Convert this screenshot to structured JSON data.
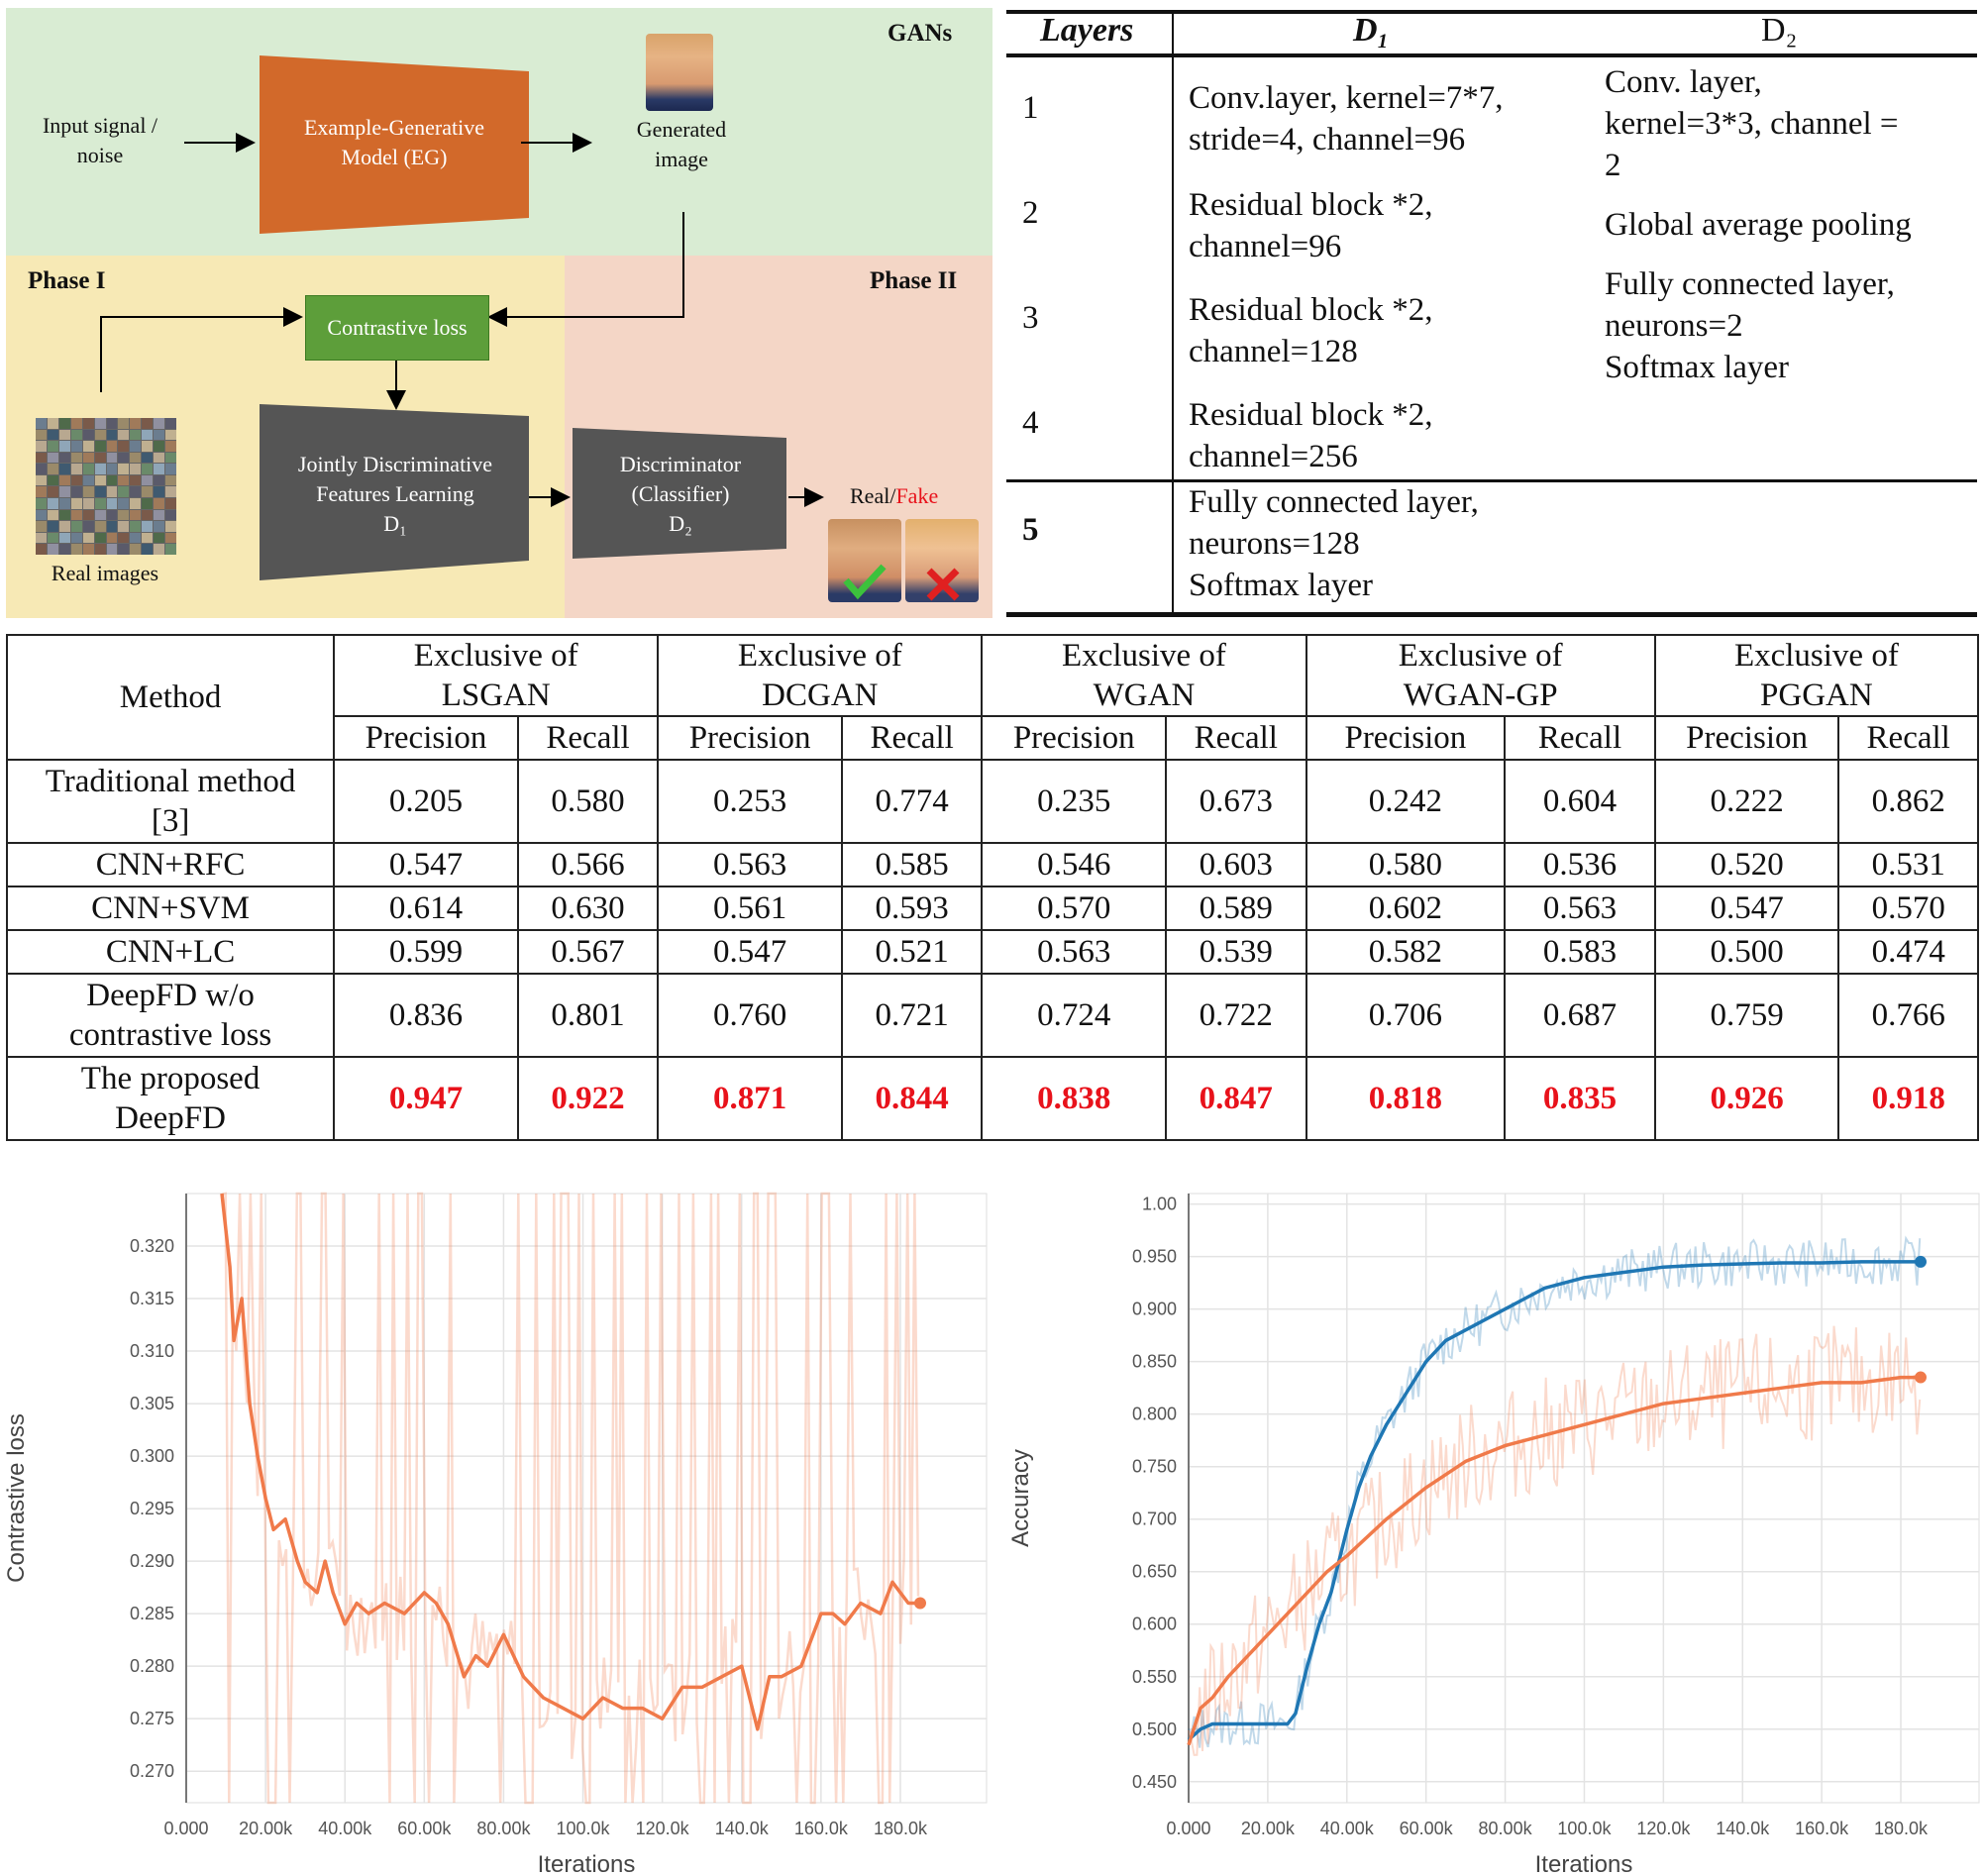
{
  "diagram": {
    "gans_label": "GANs",
    "phase1_label": "Phase I",
    "phase2_label": "Phase II",
    "input_label": "Input signal / noise",
    "eg_label": "Example-Generative Model (EG)",
    "generated_label": "Generated image",
    "contrastive_label": "Contrastive loss",
    "jdfl_line1": "Jointly Discriminative",
    "jdfl_line2": "Features Learning",
    "jdfl_line3": "D₁",
    "disc_line1": "Discriminator",
    "disc_line2": "(Classifier)",
    "disc_line3": "D₂",
    "real_images_label": "Real images",
    "real_label": "Real/",
    "fake_label": "Fake",
    "colors": {
      "eg_box": "#d2692a",
      "dark_box": "#555555",
      "loss_box": "#5d9e3a",
      "fake": "#e8121b",
      "check": "#3cc23c",
      "cross": "#e02020"
    }
  },
  "architecture": {
    "headers": {
      "layers": "Layers",
      "d1": "D₁",
      "d2": "D₂"
    },
    "rows": [
      {
        "layer": "1",
        "d1": [
          "Conv.layer, kernel=7*7,",
          "stride=4, channel=96"
        ],
        "d2": [
          "Conv. layer,",
          "kernel=3*3, channel =",
          "2"
        ]
      },
      {
        "layer": "2",
        "d1": [
          "Residual block *2,",
          "channel=96"
        ],
        "d2": [
          "Global average pooling"
        ]
      },
      {
        "layer": "3",
        "d1": [
          "Residual block *2,",
          "channel=128"
        ],
        "d2": [
          "Fully connected layer,",
          "neurons=2",
          "Softmax layer"
        ]
      },
      {
        "layer": "4",
        "d1": [
          "Residual block *2,",
          "channel=256"
        ],
        "d2": []
      },
      {
        "layer": "5",
        "d1": [
          "Fully connected layer,",
          "neurons=128",
          "Softmax layer"
        ],
        "d2": []
      }
    ]
  },
  "results": {
    "method_header": "Method",
    "groups": [
      [
        "Exclusive of",
        "LSGAN"
      ],
      [
        "Exclusive of",
        "DCGAN"
      ],
      [
        "Exclusive of",
        "WGAN"
      ],
      [
        "Exclusive of",
        "WGAN-GP"
      ],
      [
        "Exclusive of",
        "PGGAN"
      ]
    ],
    "sub_precision": "Precision",
    "sub_recall": "Recall",
    "rows": [
      {
        "method": [
          "Traditional method",
          "[3]"
        ],
        "values": [
          "0.205",
          "0.580",
          "0.253",
          "0.774",
          "0.235",
          "0.673",
          "0.242",
          "0.604",
          "0.222",
          "0.862"
        ],
        "best": false
      },
      {
        "method": [
          "CNN+RFC"
        ],
        "values": [
          "0.547",
          "0.566",
          "0.563",
          "0.585",
          "0.546",
          "0.603",
          "0.580",
          "0.536",
          "0.520",
          "0.531"
        ],
        "best": false
      },
      {
        "method": [
          "CNN+SVM"
        ],
        "values": [
          "0.614",
          "0.630",
          "0.561",
          "0.593",
          "0.570",
          "0.589",
          "0.602",
          "0.563",
          "0.547",
          "0.570"
        ],
        "best": false
      },
      {
        "method": [
          "CNN+LC"
        ],
        "values": [
          "0.599",
          "0.567",
          "0.547",
          "0.521",
          "0.563",
          "0.539",
          "0.582",
          "0.583",
          "0.500",
          "0.474"
        ],
        "best": false
      },
      {
        "method": [
          "DeepFD w/o",
          "contrastive loss"
        ],
        "values": [
          "0.836",
          "0.801",
          "0.760",
          "0.721",
          "0.724",
          "0.722",
          "0.706",
          "0.687",
          "0.759",
          "0.766"
        ],
        "best": false
      },
      {
        "method": [
          "The proposed",
          "DeepFD"
        ],
        "values": [
          "0.947",
          "0.922",
          "0.871",
          "0.844",
          "0.838",
          "0.847",
          "0.818",
          "0.835",
          "0.926",
          "0.918"
        ],
        "best": true
      }
    ]
  },
  "chart_data": [
    {
      "type": "line",
      "xlabel": "Iterations",
      "ylabel": "Contrastive loss",
      "x_ticks": [
        "0.000",
        "20.00k",
        "40.00k",
        "60.00k",
        "80.00k",
        "100.0k",
        "120.0k",
        "140.0k",
        "160.0k",
        "180.0k"
      ],
      "y_ticks": [
        "0.270",
        "0.275",
        "0.280",
        "0.285",
        "0.290",
        "0.295",
        "0.300",
        "0.305",
        "0.310",
        "0.315",
        "0.320"
      ],
      "xlim": [
        0,
        185000
      ],
      "ylim": [
        0.267,
        0.325
      ],
      "grid": true,
      "series": [
        {
          "color": "#f07a4a",
          "x": [
            9000,
            11000,
            12000,
            14000,
            16000,
            18000,
            20000,
            22000,
            25000,
            28000,
            30000,
            33000,
            35000,
            37000,
            40000,
            43000,
            46000,
            50000,
            55000,
            60000,
            63000,
            66000,
            70000,
            73000,
            76000,
            80000,
            85000,
            90000,
            95000,
            100000,
            105000,
            110000,
            115000,
            120000,
            125000,
            130000,
            135000,
            140000,
            142000,
            144000,
            147000,
            150000,
            155000,
            160000,
            163000,
            166000,
            170000,
            175000,
            178000,
            180000,
            182000,
            185000
          ],
          "y": [
            0.325,
            0.318,
            0.311,
            0.315,
            0.305,
            0.3,
            0.296,
            0.293,
            0.294,
            0.29,
            0.288,
            0.287,
            0.29,
            0.287,
            0.284,
            0.286,
            0.285,
            0.286,
            0.285,
            0.287,
            0.286,
            0.284,
            0.279,
            0.281,
            0.28,
            0.283,
            0.279,
            0.277,
            0.276,
            0.275,
            0.277,
            0.276,
            0.276,
            0.275,
            0.278,
            0.278,
            0.279,
            0.28,
            0.277,
            0.274,
            0.279,
            0.279,
            0.28,
            0.285,
            0.285,
            0.284,
            0.286,
            0.285,
            0.288,
            0.287,
            0.286,
            0.286
          ]
        }
      ]
    },
    {
      "type": "line",
      "xlabel": "Iterations",
      "ylabel": "Accuracy",
      "x_ticks": [
        "0.000",
        "20.00k",
        "40.00k",
        "60.00k",
        "80.00k",
        "100.0k",
        "120.0k",
        "140.0k",
        "160.0k",
        "180.0k"
      ],
      "y_ticks": [
        "0.450",
        "0.500",
        "0.550",
        "0.600",
        "0.650",
        "0.700",
        "0.750",
        "0.800",
        "0.850",
        "0.900",
        "0.950",
        "1.00"
      ],
      "xlim": [
        0,
        185000
      ],
      "ylim": [
        0.43,
        1.01
      ],
      "grid": true,
      "series": [
        {
          "color": "#1f77b4",
          "x": [
            0,
            3000,
            6000,
            10000,
            15000,
            20000,
            25000,
            27000,
            30000,
            33000,
            36000,
            38000,
            40000,
            43000,
            46000,
            50000,
            55000,
            60000,
            65000,
            70000,
            75000,
            80000,
            85000,
            90000,
            100000,
            110000,
            120000,
            130000,
            140000,
            150000,
            160000,
            170000,
            180000,
            185000
          ],
          "y": [
            0.49,
            0.5,
            0.505,
            0.505,
            0.505,
            0.505,
            0.505,
            0.515,
            0.56,
            0.6,
            0.63,
            0.66,
            0.69,
            0.73,
            0.76,
            0.79,
            0.82,
            0.85,
            0.87,
            0.88,
            0.89,
            0.9,
            0.91,
            0.92,
            0.93,
            0.935,
            0.94,
            0.942,
            0.943,
            0.944,
            0.944,
            0.945,
            0.945,
            0.945
          ]
        },
        {
          "color": "#f07a4a",
          "x": [
            0,
            3000,
            6000,
            10000,
            15000,
            20000,
            25000,
            30000,
            35000,
            40000,
            50000,
            60000,
            70000,
            80000,
            90000,
            100000,
            110000,
            120000,
            130000,
            140000,
            150000,
            160000,
            170000,
            180000,
            185000
          ],
          "y": [
            0.485,
            0.52,
            0.53,
            0.55,
            0.57,
            0.59,
            0.61,
            0.63,
            0.65,
            0.665,
            0.7,
            0.73,
            0.755,
            0.77,
            0.78,
            0.79,
            0.8,
            0.81,
            0.815,
            0.82,
            0.825,
            0.83,
            0.83,
            0.835,
            0.835
          ]
        }
      ]
    }
  ]
}
